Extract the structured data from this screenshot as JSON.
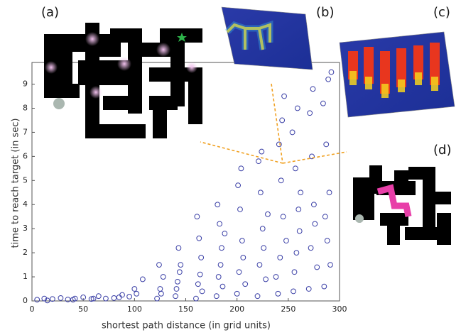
{
  "chart_data": {
    "type": "scatter",
    "xlabel": "shortest path distance (in grid units)",
    "ylabel": "time to reach target (in sec)",
    "panel_labels": [
      "(a)",
      "(b)",
      "(c)",
      "(d)"
    ],
    "color": "#3a3fa6",
    "xlim": [
      0,
      300
    ],
    "xticks": [
      0,
      50,
      100,
      150,
      200,
      250,
      300
    ],
    "ylim": [
      0,
      9.9
    ],
    "yticks": [
      0,
      1,
      2,
      3,
      4,
      5,
      6,
      7,
      8,
      9
    ],
    "x": [
      5,
      12,
      20,
      28,
      35,
      42,
      50,
      58,
      65,
      72,
      80,
      88,
      95,
      102,
      108,
      15,
      40,
      60,
      85,
      100,
      122,
      125,
      128,
      124,
      126,
      140,
      142,
      145,
      143,
      141,
      144,
      160,
      162,
      165,
      163,
      161,
      164,
      166,
      180,
      182,
      185,
      183,
      181,
      184,
      186,
      188,
      200,
      202,
      205,
      203,
      201,
      204,
      206,
      208,
      220,
      222,
      225,
      223,
      221,
      224,
      226,
      228,
      230,
      240,
      242,
      245,
      243,
      241,
      244,
      246,
      248,
      238,
      255,
      258,
      260,
      257,
      254,
      259,
      262,
      256,
      261,
      270,
      272,
      275,
      273,
      271,
      274,
      276,
      278,
      285,
      288,
      290,
      287,
      284,
      289,
      292,
      286,
      291
    ],
    "values": [
      0.05,
      0.1,
      0.08,
      0.12,
      0.06,
      0.1,
      0.15,
      0.08,
      0.2,
      0.1,
      0.12,
      0.25,
      0.18,
      0.3,
      0.9,
      0.02,
      0.05,
      0.1,
      0.15,
      0.5,
      0.1,
      0.5,
      1.0,
      1.5,
      0.3,
      0.2,
      0.8,
      1.5,
      2.2,
      0.5,
      1.2,
      0.1,
      0.7,
      1.8,
      2.6,
      3.5,
      1.1,
      0.4,
      0.2,
      1.0,
      2.2,
      3.2,
      4.0,
      1.5,
      0.6,
      2.8,
      0.3,
      1.2,
      2.5,
      3.8,
      4.8,
      5.5,
      1.8,
      0.7,
      0.2,
      1.5,
      3.0,
      4.5,
      5.8,
      6.2,
      2.2,
      0.9,
      3.6,
      0.3,
      1.8,
      3.5,
      5.0,
      6.5,
      7.5,
      8.5,
      2.5,
      1.0,
      0.4,
      2.0,
      3.8,
      5.5,
      7.0,
      8.0,
      4.5,
      1.2,
      2.9,
      0.5,
      2.2,
      4.0,
      6.0,
      7.8,
      8.8,
      3.2,
      1.4,
      0.6,
      2.5,
      4.5,
      6.5,
      8.2,
      9.2,
      9.5,
      3.5,
      1.5
    ]
  }
}
